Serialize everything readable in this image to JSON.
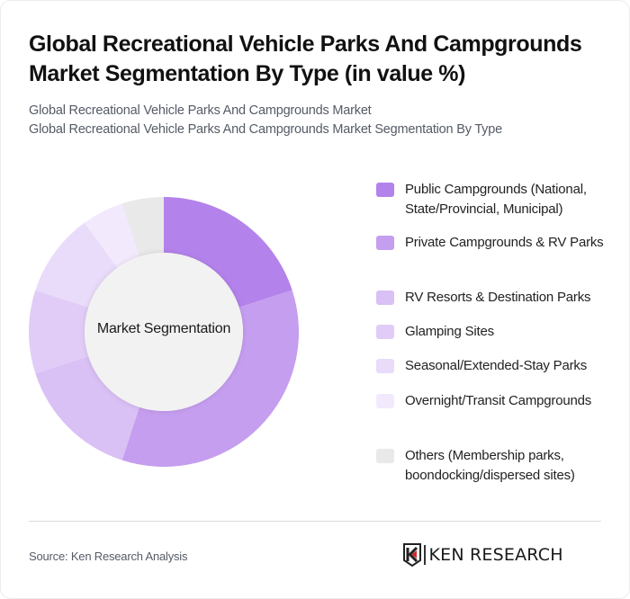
{
  "header": {
    "title": "Global Recreational Vehicle Parks And Campgrounds Market Segmentation By Type (in value %)",
    "subtitle_lines": [
      "Global Recreational Vehicle Parks And Campgrounds Market",
      "Global Recreational Vehicle Parks And Campgrounds Market Segmentation By Type"
    ]
  },
  "chart": {
    "center_label": "Market Segmentation"
  },
  "chart_data": {
    "type": "pie",
    "variant": "donut",
    "title": "Global Recreational Vehicle Parks And Campgrounds Market Segmentation By Type (in value %)",
    "center_label": "Market Segmentation",
    "unit": "%",
    "legend_position": "right",
    "categories": [
      "Public Campgrounds (National, State/Provincial, Municipal)",
      "Private Campgrounds & RV Parks",
      "RV Resorts & Destination Parks",
      "Glamping Sites",
      "Seasonal/Extended-Stay Parks",
      "Overnight/Transit Campgrounds",
      "Others (Membership parks, boondocking/dispersed sites)"
    ],
    "values": [
      20,
      35,
      15,
      10,
      10,
      5,
      5
    ],
    "colors": [
      "#b482eb",
      "#c59eef",
      "#d9c0f5",
      "#e1ccf7",
      "#e9dbfa",
      "#f2eafc",
      "#e9e9e9"
    ]
  },
  "legend": {
    "items": [
      {
        "label": "Public Campgrounds (National, State/Provincial, Municipal)",
        "color": "#b482eb"
      },
      {
        "label": "Private Campgrounds & RV Parks",
        "color": "#c59eef"
      },
      {
        "label": "RV Resorts & Destination Parks",
        "color": "#d9c0f5"
      },
      {
        "label": "Glamping Sites",
        "color": "#e1ccf7"
      },
      {
        "label": "Seasonal/Extended-Stay Parks",
        "color": "#e9dbfa"
      },
      {
        "label": "Overnight/Transit Campgrounds",
        "color": "#f2eafc"
      },
      {
        "label": "Others (Membership parks, boondocking/dispersed sites)",
        "color": "#e9e9e9"
      }
    ]
  },
  "footer": {
    "source": "Source: Ken Research Analysis",
    "logo_text": "KEN RESEARCH",
    "logo_icon": "ken-research-k-shield-icon"
  }
}
